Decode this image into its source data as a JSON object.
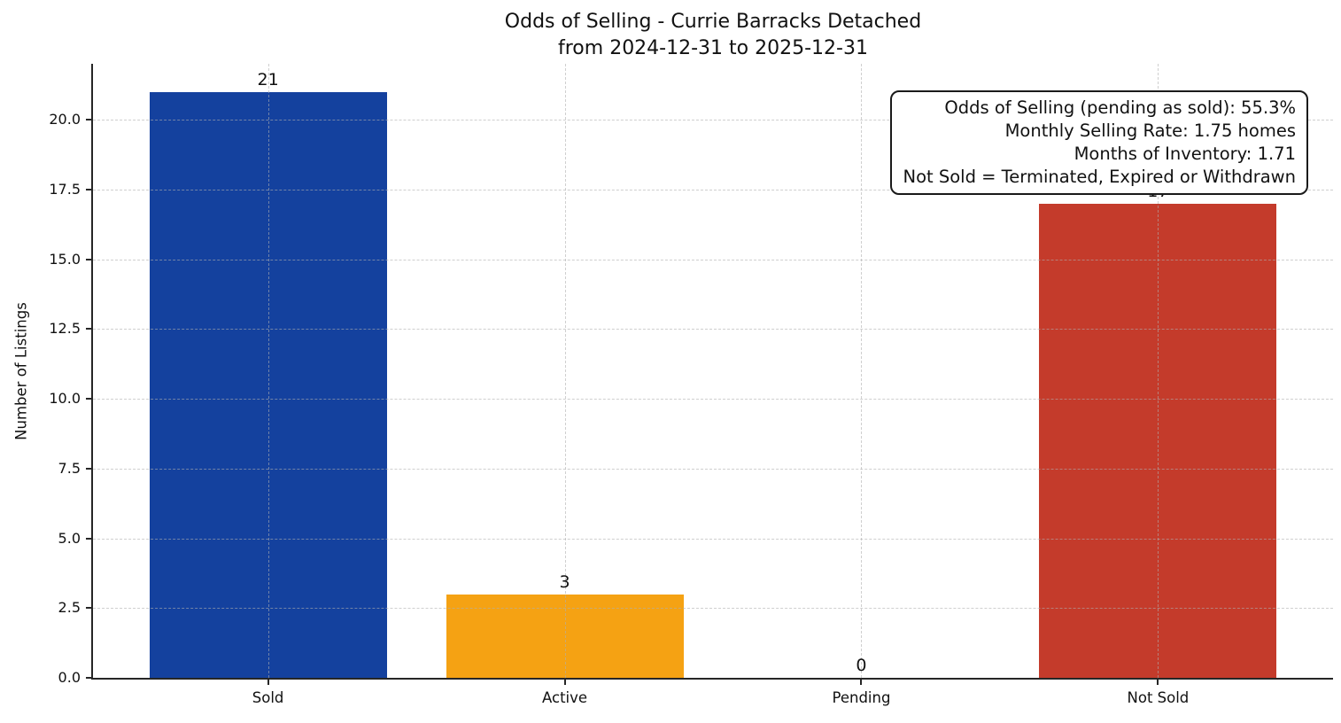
{
  "chart_data": {
    "type": "bar",
    "title": "Odds of Selling - Currie Barracks Detached",
    "subtitle": "from 2024-12-31 to 2025-12-31",
    "categories": [
      "Sold",
      "Active",
      "Pending",
      "Not Sold"
    ],
    "values": [
      21,
      3,
      0,
      17
    ],
    "value_labels": [
      "21",
      "3",
      "0",
      "17"
    ],
    "bar_colors": [
      "#14419E",
      "#F5A213",
      null,
      "#C43B2B"
    ],
    "xlabel": "",
    "ylabel": "Number of Listings",
    "ylim": [
      0,
      22
    ],
    "yticks": [
      0,
      2.5,
      5,
      7.5,
      10,
      12.5,
      15,
      17.5,
      20
    ],
    "ytick_labels": [
      "0.0",
      "2.5",
      "5.0",
      "7.5",
      "10.0",
      "12.5",
      "15.0",
      "17.5",
      "20.0"
    ],
    "grid": "dashed-both-axes-over-bars",
    "legend_position": "none",
    "annotation_lines": [
      "Odds of Selling (pending as sold): 55.3%",
      "Monthly Selling Rate: 1.75 homes",
      "Months of Inventory: 1.71",
      "Not Sold = Terminated, Expired or Withdrawn"
    ]
  },
  "colors": {
    "background": "#FFFFFF",
    "text": "#111111",
    "spine": "#262626",
    "gridline": "#AFAFAF",
    "annotation_border": "#1A1A1A"
  }
}
